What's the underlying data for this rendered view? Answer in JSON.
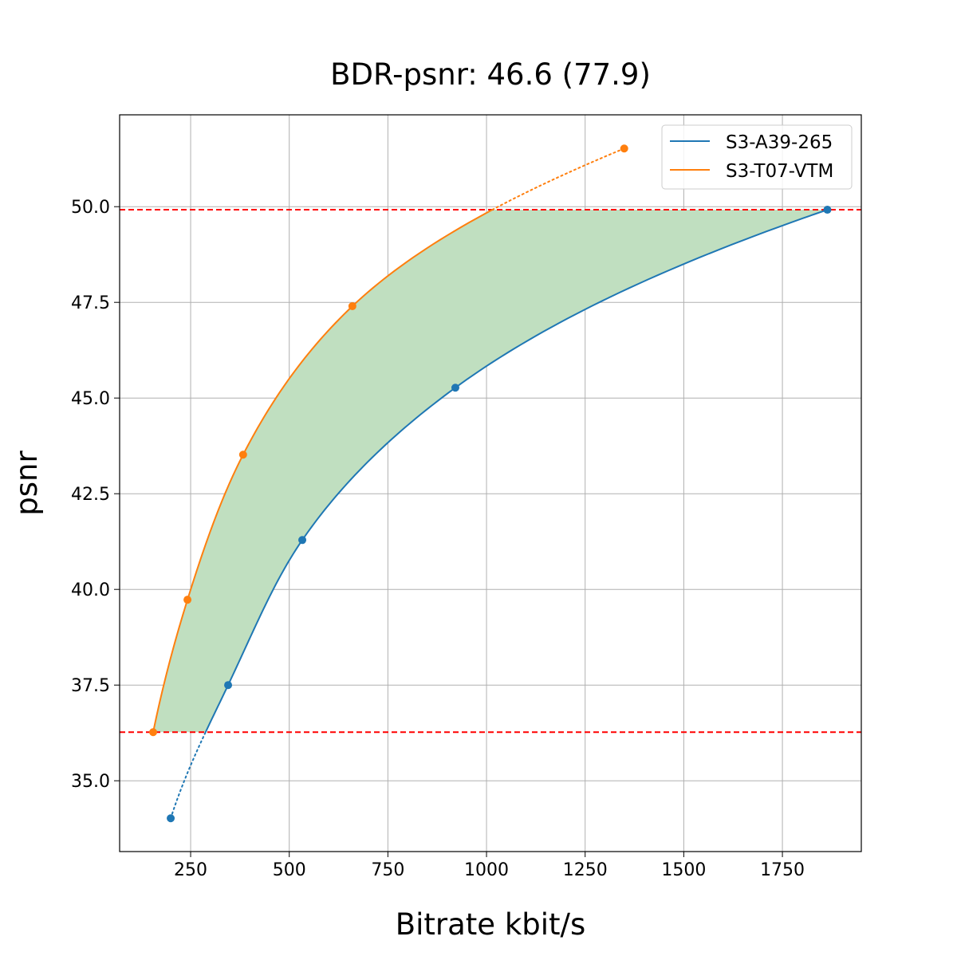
{
  "chart_data": {
    "type": "line",
    "title": "BDR-psnr: 46.6 (77.9)",
    "xlabel": "Bitrate kbit/s",
    "ylabel": "psnr",
    "xlim": [
      70,
      1950
    ],
    "ylim": [
      33.15,
      52.4
    ],
    "xticks": [
      250,
      500,
      750,
      1000,
      1250,
      1500,
      1750
    ],
    "xtick_labels": [
      "250",
      "500",
      "750",
      "1000",
      "1250",
      "1500",
      "1750"
    ],
    "yticks": [
      35.0,
      37.5,
      40.0,
      42.5,
      45.0,
      47.5,
      50.0
    ],
    "ytick_labels": [
      "35.0",
      "37.5",
      "40.0",
      "42.5",
      "45.0",
      "47.5",
      "50.0"
    ],
    "grid": true,
    "legend_position": "top-right",
    "series": [
      {
        "name": "S3-A39-265",
        "color": "#1f77b4",
        "x": [
          199.5,
          345,
          533,
          921,
          1864
        ],
        "y": [
          34.02,
          37.5,
          41.29,
          45.27,
          49.92
        ]
      },
      {
        "name": "S3-T07-VTM",
        "color": "#ff7f0e",
        "x": [
          155,
          242,
          383,
          660,
          1349
        ],
        "y": [
          36.27,
          39.73,
          43.52,
          47.4,
          51.52
        ]
      }
    ],
    "reference_lines": {
      "color": "#ff0000",
      "style": "dashed",
      "y": [
        49.92,
        36.27
      ]
    },
    "fill_between": {
      "color": "#c0dfc0",
      "y_range": [
        36.27,
        49.92
      ]
    }
  }
}
